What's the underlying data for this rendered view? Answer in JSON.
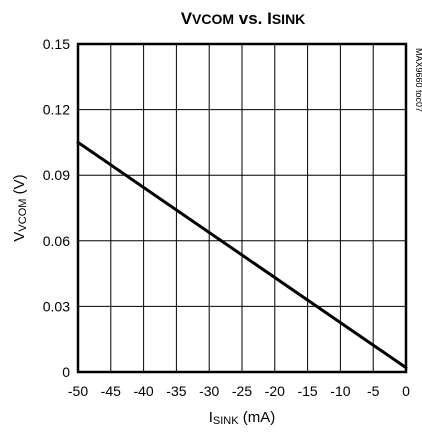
{
  "chart_data": {
    "type": "line",
    "title": {
      "main1": "V",
      "sub1": "VCOM",
      "mid": " vs. I",
      "sub2": "SINK"
    },
    "xlabel": {
      "main": "I",
      "sub": "SINK",
      "unit": " (mA)"
    },
    "ylabel": {
      "main": "V",
      "sub": "VCOM",
      "unit": " (V)"
    },
    "xlim": [
      -50,
      0
    ],
    "ylim": [
      0,
      0.15
    ],
    "xticks": [
      -50,
      -45,
      -40,
      -35,
      -30,
      -25,
      -20,
      -15,
      -10,
      -5,
      0
    ],
    "xtick_labels": [
      "-50",
      "-45",
      "-40",
      "-35",
      "-30",
      "-25",
      "-20",
      "-15",
      "-10",
      "-5",
      "0"
    ],
    "yticks": [
      0,
      0.03,
      0.06,
      0.09,
      0.12,
      0.15
    ],
    "ytick_labels": [
      "0",
      "0.03",
      "0.06",
      "0.09",
      "0.12",
      "0.15"
    ],
    "grid": true,
    "series": [
      {
        "x": [
          -50,
          0
        ],
        "y": [
          0.105,
          0.002
        ]
      }
    ],
    "watermark": "MAX9660 toc07"
  }
}
